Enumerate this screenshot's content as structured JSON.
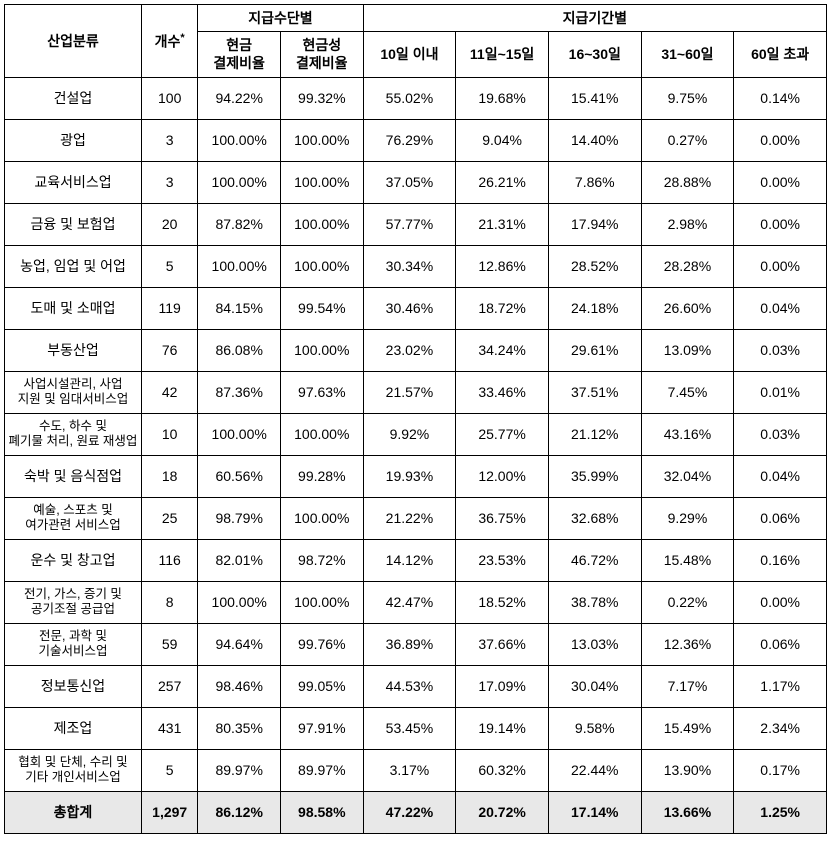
{
  "headers": {
    "industry": "산업분류",
    "count": "개수",
    "count_asterisk": "*",
    "payment_method_group": "지급수단별",
    "payment_period_group": "지급기간별",
    "cash_ratio_line1": "현금",
    "cash_ratio_line2": "결제비율",
    "cashlike_ratio_line1": "현금성",
    "cashlike_ratio_line2": "결제비율",
    "period_10": "10일 이내",
    "period_11_15": "11일~15일",
    "period_16_30": "16~30일",
    "period_31_60": "31~60일",
    "period_60_over": "60일 초과"
  },
  "rows": [
    {
      "industry": "건설업",
      "small": false,
      "count": "100",
      "cash": "94.22%",
      "cashlike": "99.32%",
      "p1": "55.02%",
      "p2": "19.68%",
      "p3": "15.41%",
      "p4": "9.75%",
      "p5": "0.14%"
    },
    {
      "industry": "광업",
      "small": false,
      "count": "3",
      "cash": "100.00%",
      "cashlike": "100.00%",
      "p1": "76.29%",
      "p2": "9.04%",
      "p3": "14.40%",
      "p4": "0.27%",
      "p5": "0.00%"
    },
    {
      "industry": "교육서비스업",
      "small": false,
      "count": "3",
      "cash": "100.00%",
      "cashlike": "100.00%",
      "p1": "37.05%",
      "p2": "26.21%",
      "p3": "7.86%",
      "p4": "28.88%",
      "p5": "0.00%"
    },
    {
      "industry": "금융 및 보험업",
      "small": false,
      "count": "20",
      "cash": "87.82%",
      "cashlike": "100.00%",
      "p1": "57.77%",
      "p2": "21.31%",
      "p3": "17.94%",
      "p4": "2.98%",
      "p5": "0.00%"
    },
    {
      "industry": "농업, 임업 및 어업",
      "small": false,
      "count": "5",
      "cash": "100.00%",
      "cashlike": "100.00%",
      "p1": "30.34%",
      "p2": "12.86%",
      "p3": "28.52%",
      "p4": "28.28%",
      "p5": "0.00%"
    },
    {
      "industry": "도매 및 소매업",
      "small": false,
      "count": "119",
      "cash": "84.15%",
      "cashlike": "99.54%",
      "p1": "30.46%",
      "p2": "18.72%",
      "p3": "24.18%",
      "p4": "26.60%",
      "p5": "0.04%"
    },
    {
      "industry": "부동산업",
      "small": false,
      "count": "76",
      "cash": "86.08%",
      "cashlike": "100.00%",
      "p1": "23.02%",
      "p2": "34.24%",
      "p3": "29.61%",
      "p4": "13.09%",
      "p5": "0.03%"
    },
    {
      "industry": "사업시설관리, 사업\n지원 및 임대서비스업",
      "small": true,
      "count": "42",
      "cash": "87.36%",
      "cashlike": "97.63%",
      "p1": "21.57%",
      "p2": "33.46%",
      "p3": "37.51%",
      "p4": "7.45%",
      "p5": "0.01%"
    },
    {
      "industry": "수도, 하수 및\n폐기물 처리, 원료 재생업",
      "small": true,
      "count": "10",
      "cash": "100.00%",
      "cashlike": "100.00%",
      "p1": "9.92%",
      "p2": "25.77%",
      "p3": "21.12%",
      "p4": "43.16%",
      "p5": "0.03%"
    },
    {
      "industry": "숙박 및 음식점업",
      "small": false,
      "count": "18",
      "cash": "60.56%",
      "cashlike": "99.28%",
      "p1": "19.93%",
      "p2": "12.00%",
      "p3": "35.99%",
      "p4": "32.04%",
      "p5": "0.04%"
    },
    {
      "industry": "예술, 스포츠 및\n여가관련 서비스업",
      "small": true,
      "count": "25",
      "cash": "98.79%",
      "cashlike": "100.00%",
      "p1": "21.22%",
      "p2": "36.75%",
      "p3": "32.68%",
      "p4": "9.29%",
      "p5": "0.06%"
    },
    {
      "industry": "운수 및 창고업",
      "small": false,
      "count": "116",
      "cash": "82.01%",
      "cashlike": "98.72%",
      "p1": "14.12%",
      "p2": "23.53%",
      "p3": "46.72%",
      "p4": "15.48%",
      "p5": "0.16%"
    },
    {
      "industry": "전기, 가스, 증기 및\n공기조절 공급업",
      "small": true,
      "count": "8",
      "cash": "100.00%",
      "cashlike": "100.00%",
      "p1": "42.47%",
      "p2": "18.52%",
      "p3": "38.78%",
      "p4": "0.22%",
      "p5": "0.00%"
    },
    {
      "industry": "전문, 과학 및\n기술서비스업",
      "small": true,
      "count": "59",
      "cash": "94.64%",
      "cashlike": "99.76%",
      "p1": "36.89%",
      "p2": "37.66%",
      "p3": "13.03%",
      "p4": "12.36%",
      "p5": "0.06%"
    },
    {
      "industry": "정보통신업",
      "small": false,
      "count": "257",
      "cash": "98.46%",
      "cashlike": "99.05%",
      "p1": "44.53%",
      "p2": "17.09%",
      "p3": "30.04%",
      "p4": "7.17%",
      "p5": "1.17%"
    },
    {
      "industry": "제조업",
      "small": false,
      "count": "431",
      "cash": "80.35%",
      "cashlike": "97.91%",
      "p1": "53.45%",
      "p2": "19.14%",
      "p3": "9.58%",
      "p4": "15.49%",
      "p5": "2.34%"
    },
    {
      "industry": "협회 및 단체, 수리 및\n기타 개인서비스업",
      "small": true,
      "count": "5",
      "cash": "89.97%",
      "cashlike": "89.97%",
      "p1": "3.17%",
      "p2": "60.32%",
      "p3": "22.44%",
      "p4": "13.90%",
      "p5": "0.17%"
    }
  ],
  "total": {
    "label": "총합계",
    "count": "1,297",
    "cash": "86.12%",
    "cashlike": "98.58%",
    "p1": "47.22%",
    "p2": "20.72%",
    "p3": "17.14%",
    "p4": "13.66%",
    "p5": "1.25%"
  },
  "style": {
    "border_color": "#000000",
    "total_bg": "#e8e8e8",
    "font_family": "Malgun Gothic",
    "base_fontsize": 14,
    "small_fontsize": 12.5
  }
}
